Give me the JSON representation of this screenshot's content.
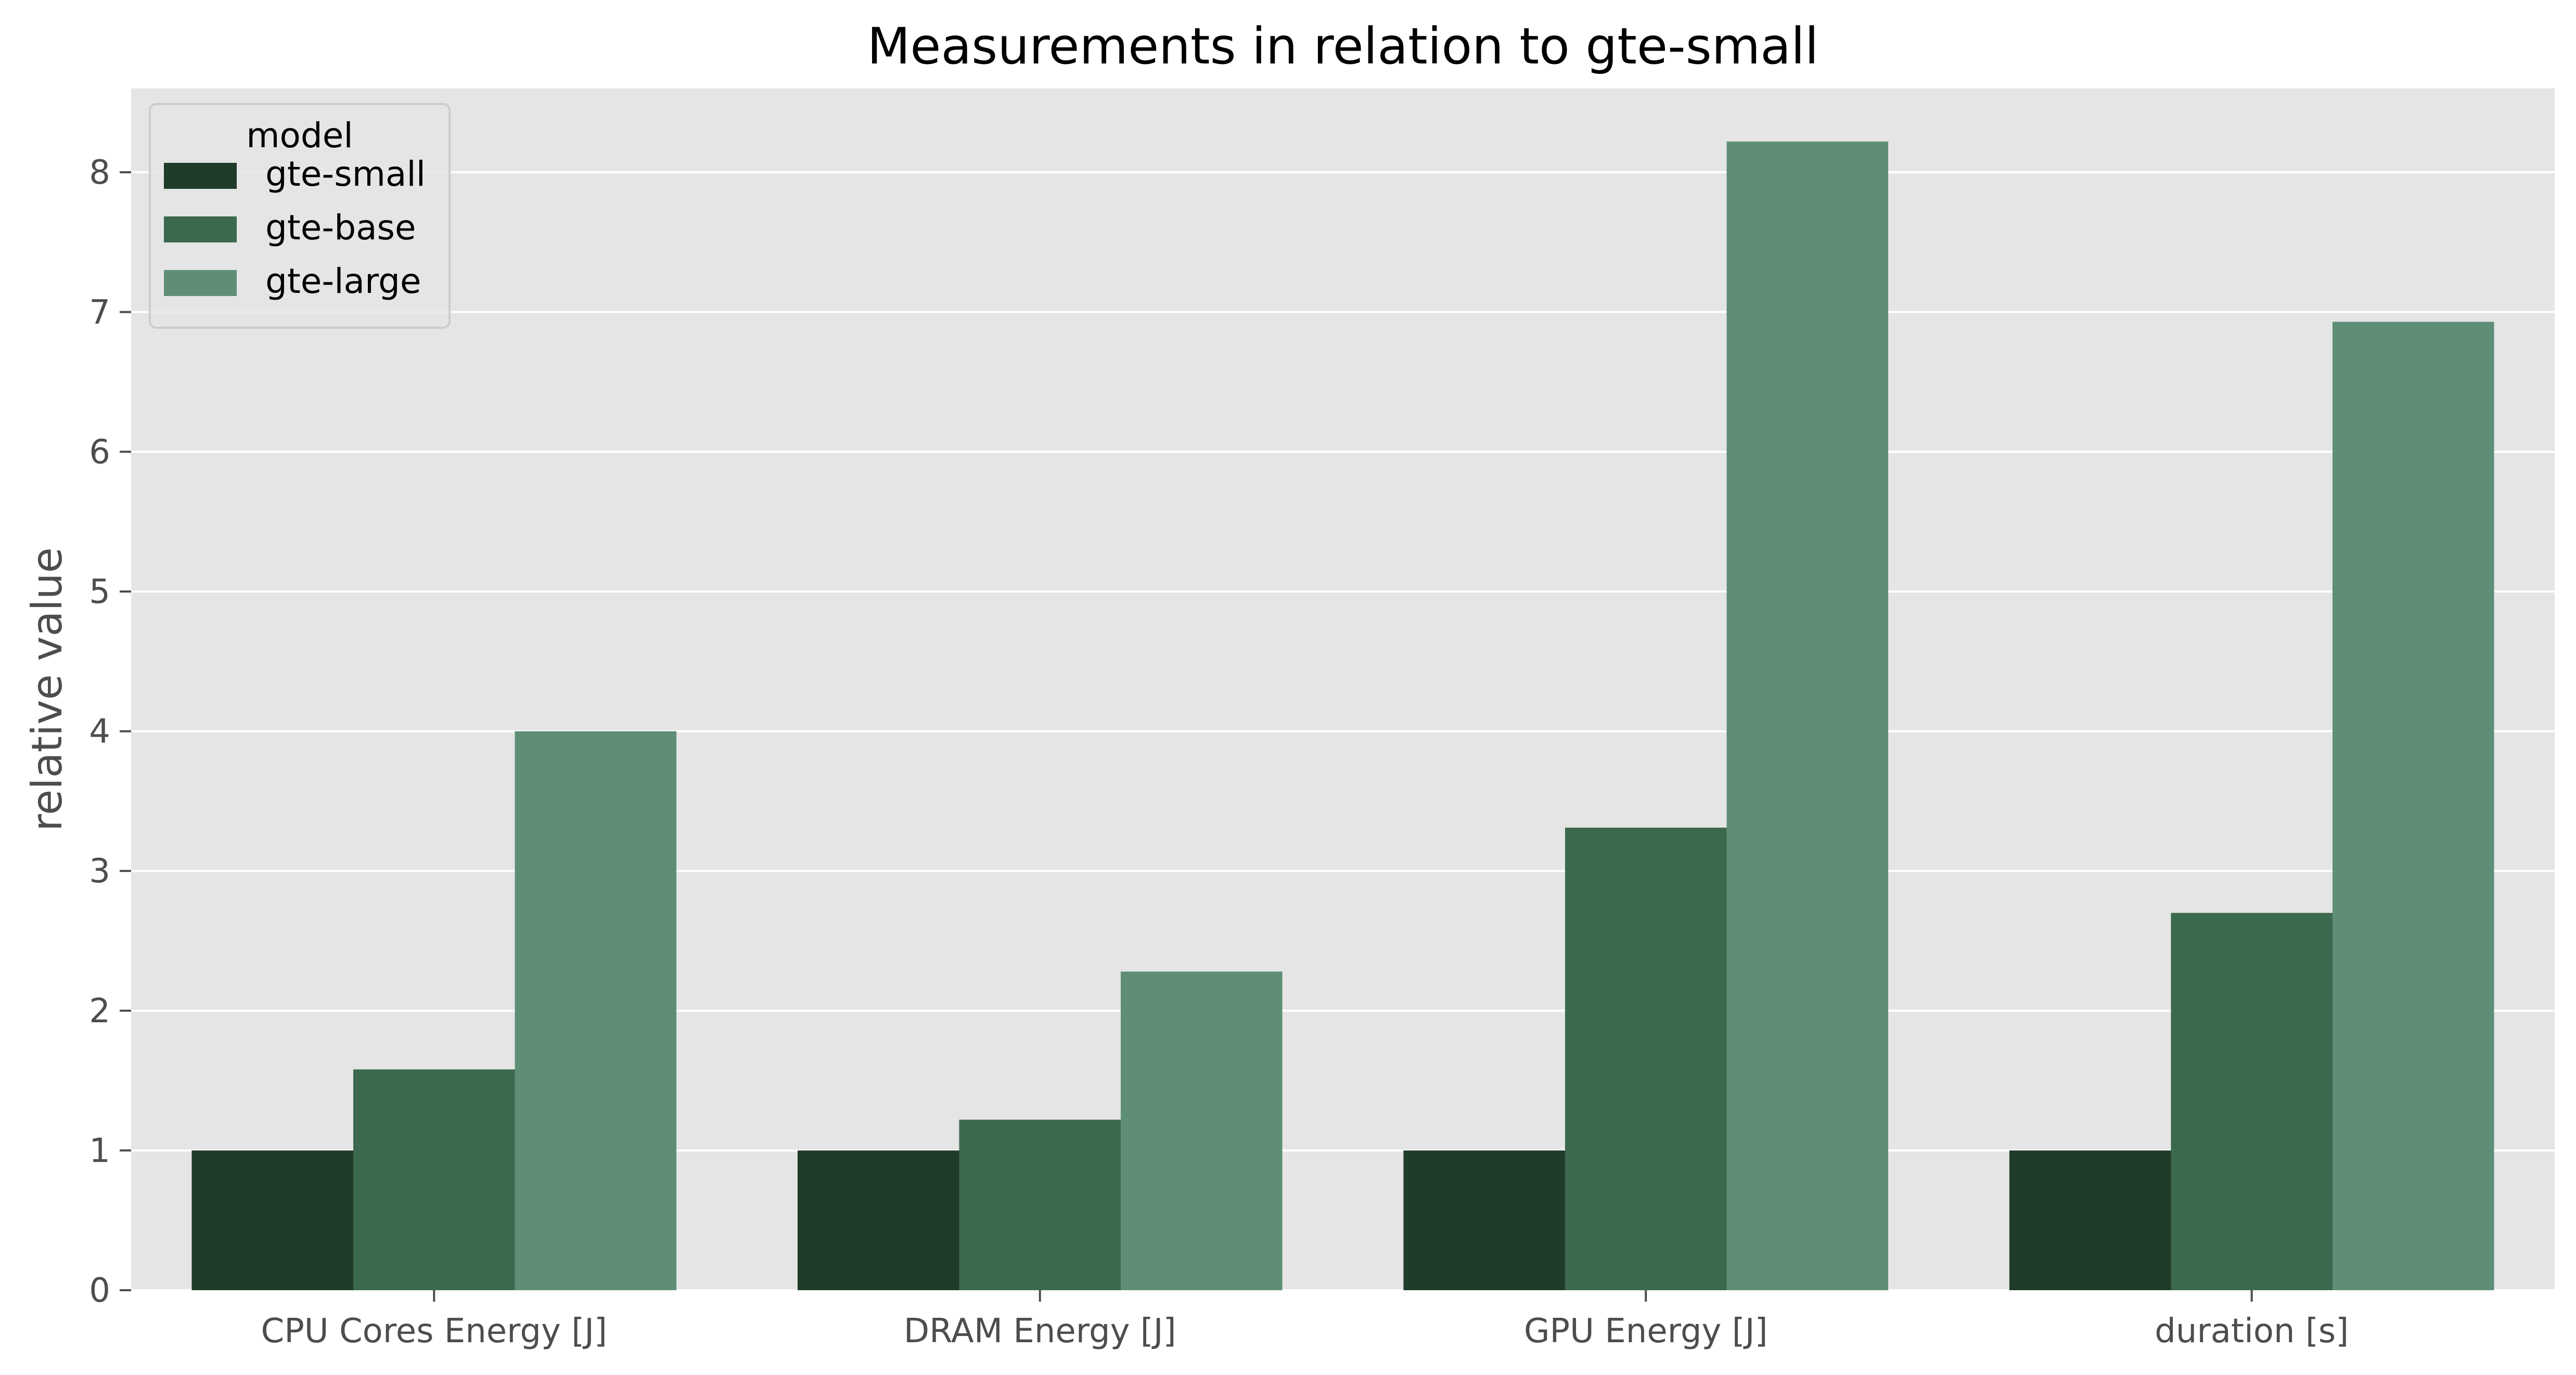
{
  "chart_data": {
    "type": "bar",
    "title": "Measurements in relation to gte-small",
    "xlabel": "",
    "ylabel": "relative value",
    "categories": [
      "CPU Cores Energy [J]",
      "DRAM Energy [J]",
      "GPU Energy [J]",
      "duration [s]"
    ],
    "series": [
      {
        "name": "gte-small",
        "color": "#1f3b29",
        "values": [
          1.0,
          1.0,
          1.0,
          1.0
        ]
      },
      {
        "name": "gte-base",
        "color": "#3b694d",
        "values": [
          1.58,
          1.22,
          3.31,
          2.7
        ]
      },
      {
        "name": "gte-large",
        "color": "#5e8f76",
        "values": [
          4.0,
          2.28,
          8.22,
          6.93
        ]
      }
    ],
    "ylim": [
      0,
      8.6
    ],
    "yticks": [
      0,
      1,
      2,
      3,
      4,
      5,
      6,
      7,
      8
    ],
    "grid": true,
    "legend": {
      "title": "model",
      "placement": "top-left"
    },
    "colors": {
      "plot_background": "#e5e5e5",
      "grid": "#ffffff",
      "tick_text": "#4d4d4d"
    }
  }
}
